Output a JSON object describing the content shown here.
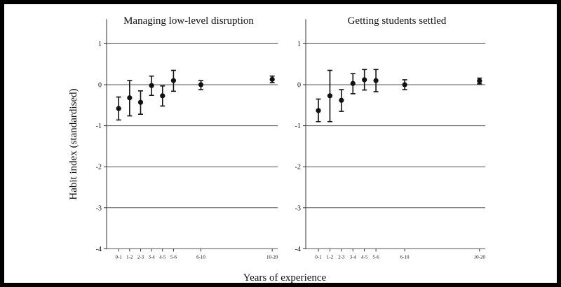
{
  "chart_data": {
    "type": "scatter",
    "ylabel": "Habit index (standardised)",
    "xlabel": "Years of experience",
    "ylim": [
      -4,
      1.6
    ],
    "yticks": [
      1,
      0,
      -1,
      -2,
      -3,
      -4
    ],
    "ytick_labels": [
      "1",
      "0",
      "-1",
      "-2",
      "-3",
      "-4"
    ],
    "grid": "horizontal",
    "categories": [
      "0-1",
      "1-2",
      "2-3",
      "3-4",
      "4-5",
      "5-6",
      "6-10",
      "10-20"
    ],
    "panels": [
      {
        "title": "Managing low-level disruption",
        "points": [
          {
            "x": "0-1",
            "y": -0.58,
            "lo": -0.86,
            "hi": -0.3
          },
          {
            "x": "1-2",
            "y": -0.32,
            "lo": -0.76,
            "hi": 0.1
          },
          {
            "x": "2-3",
            "y": -0.43,
            "lo": -0.72,
            "hi": -0.15
          },
          {
            "x": "3-4",
            "y": -0.02,
            "lo": -0.26,
            "hi": 0.21
          },
          {
            "x": "4-5",
            "y": -0.27,
            "lo": -0.52,
            "hi": -0.03
          },
          {
            "x": "5-6",
            "y": 0.1,
            "lo": -0.16,
            "hi": 0.35
          },
          {
            "x": "6-10",
            "y": 0.0,
            "lo": -0.12,
            "hi": 0.1
          },
          {
            "x": "10-20",
            "y": 0.13,
            "lo": 0.05,
            "hi": 0.21
          }
        ]
      },
      {
        "title": "Getting students settled",
        "points": [
          {
            "x": "0-1",
            "y": -0.63,
            "lo": -0.9,
            "hi": -0.35
          },
          {
            "x": "1-2",
            "y": -0.27,
            "lo": -0.9,
            "hi": 0.35
          },
          {
            "x": "2-3",
            "y": -0.38,
            "lo": -0.65,
            "hi": -0.12
          },
          {
            "x": "3-4",
            "y": 0.03,
            "lo": -0.22,
            "hi": 0.27
          },
          {
            "x": "4-5",
            "y": 0.12,
            "lo": -0.13,
            "hi": 0.37
          },
          {
            "x": "5-6",
            "y": 0.1,
            "lo": -0.17,
            "hi": 0.37
          },
          {
            "x": "6-10",
            "y": 0.0,
            "lo": -0.12,
            "hi": 0.12
          },
          {
            "x": "10-20",
            "y": 0.09,
            "lo": 0.02,
            "hi": 0.16
          }
        ]
      }
    ]
  }
}
